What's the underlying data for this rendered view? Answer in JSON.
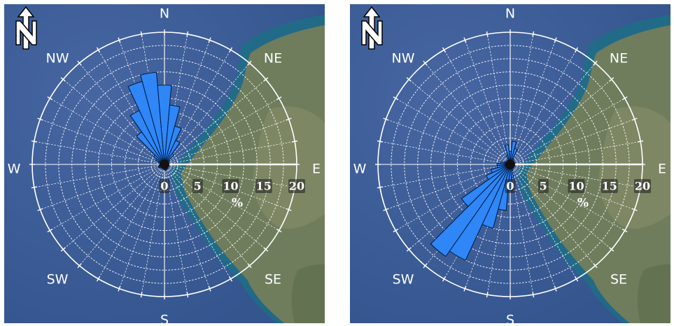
{
  "compass_labels": {
    "n": "N",
    "ne": "NE",
    "e": "E",
    "se": "SE",
    "s": "S",
    "sw": "SW",
    "w": "W",
    "nw": "NW"
  },
  "scale_ticks": [
    "0",
    "5",
    "10",
    "15",
    "20"
  ],
  "unit_label": "%",
  "colors": {
    "bar": "#2f86f6",
    "bar_stroke": "#001a40",
    "ring": "#ffffff",
    "sea": "#34558e",
    "land": "#6f7d5d"
  },
  "icons": {
    "north_arrow": "north-arrow-icon"
  },
  "chart_data": [
    {
      "type": "polar-bar",
      "title": "",
      "rmax": 20,
      "ring_step": 2,
      "radial_unit": "%",
      "sector_width_deg": 10,
      "directions_deg": [
        280,
        290,
        300,
        310,
        320,
        330,
        340,
        350,
        0,
        10,
        20,
        30,
        40,
        50,
        60,
        70,
        80,
        90,
        100,
        110,
        120,
        130,
        140,
        150,
        160,
        170,
        180,
        190,
        200,
        210,
        220,
        230,
        240,
        250,
        260,
        270
      ],
      "values": [
        0.6,
        1,
        1.5,
        2,
        6,
        9,
        13,
        14,
        12,
        9,
        6,
        4,
        2,
        1,
        0.5,
        0.3,
        0.3,
        0.3,
        0.3,
        0.3,
        0.5,
        0.5,
        0.5,
        0.8,
        0.8,
        1,
        0.8,
        0.5,
        0.5,
        0.5,
        0.5,
        0.5,
        1,
        1,
        0.8,
        0.6
      ]
    },
    {
      "type": "polar-bar",
      "title": "",
      "rmax": 20,
      "ring_step": 2,
      "radial_unit": "%",
      "sector_width_deg": 10,
      "directions_deg": [
        0,
        10,
        20,
        30,
        40,
        50,
        60,
        70,
        80,
        90,
        100,
        110,
        120,
        130,
        140,
        150,
        160,
        170,
        180,
        190,
        200,
        210,
        220,
        230,
        240,
        250,
        260,
        270,
        280,
        290,
        300,
        310,
        320,
        330,
        340,
        350
      ],
      "values": [
        2,
        3.5,
        2.5,
        1,
        0.5,
        0.3,
        0.3,
        0.3,
        0.3,
        0.3,
        0.3,
        0.3,
        0.5,
        0.5,
        0.5,
        0.5,
        1,
        2,
        4,
        7,
        10,
        16,
        17,
        9,
        4,
        3,
        2,
        2,
        1.5,
        1,
        0.5,
        0.5,
        0.5,
        0.5,
        1.5,
        3
      ]
    }
  ]
}
